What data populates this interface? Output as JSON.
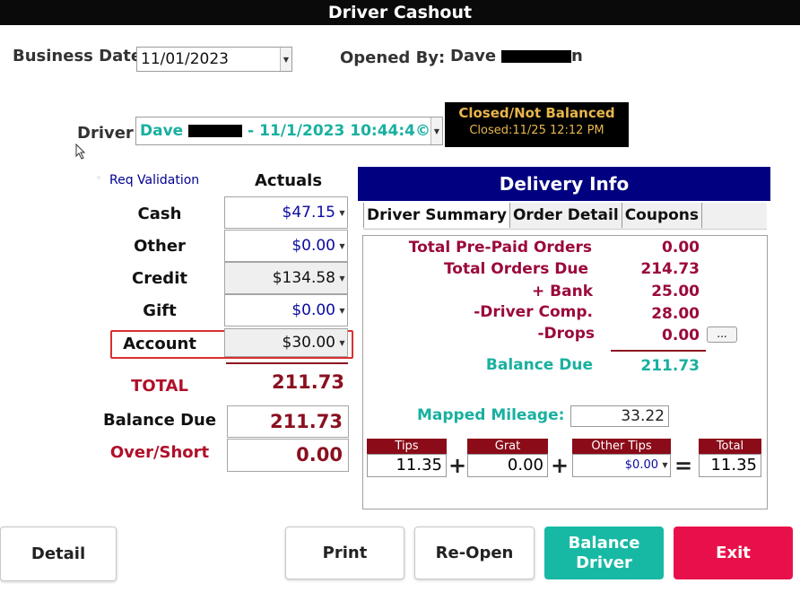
{
  "window": {
    "title": "Driver Cashout"
  },
  "header": {
    "business_date_label": "Business Date",
    "business_date_value": "11/01/2023",
    "opened_by_label": "Opened By:",
    "opened_by_name": "Dave",
    "opened_by_suffix": "n"
  },
  "driver": {
    "label": "Driver",
    "value_prefix": "Dave",
    "value_suffix": "- 11/1/2023 10:44:4©"
  },
  "status": {
    "main": "Closed/Not Balanced",
    "sub": "Closed:11/25 12:12 PM"
  },
  "actuals": {
    "req_validation_label": "Req Validation",
    "header": "Actuals",
    "rows": [
      {
        "label": "Cash",
        "value": "$47.15"
      },
      {
        "label": "Other",
        "value": "$0.00"
      },
      {
        "label": "Credit",
        "value": "$134.58"
      },
      {
        "label": "Gift",
        "value": "$0.00"
      },
      {
        "label": "Account",
        "value": "$30.00"
      }
    ],
    "total_label": "TOTAL",
    "total_value": "211.73",
    "balance_due_label": "Balance Due",
    "balance_due_value": "211.73",
    "over_short_label": "Over/Short",
    "over_short_value": "0.00"
  },
  "delivery": {
    "title": "Delivery Info",
    "tabs": [
      "Driver Summary",
      "Order Detail",
      "Coupons"
    ],
    "summary": [
      {
        "label": "Total Pre-Paid Orders",
        "value": "0.00"
      },
      {
        "label": "Total Orders Due",
        "value": "214.73"
      },
      {
        "label": "+ Bank",
        "value": "25.00"
      },
      {
        "label": "-Driver Comp.",
        "value": "28.00"
      },
      {
        "label": "-Drops",
        "value": "0.00"
      }
    ],
    "drops_button": "...",
    "balance_due_label": "Balance Due",
    "balance_due_value": "211.73",
    "mileage_label": "Mapped Mileage:",
    "mileage_value": "33.22",
    "tips": {
      "tips_label": "Tips",
      "tips_value": "11.35",
      "grat_label": "Grat",
      "grat_value": "0.00",
      "other_label": "Other Tips",
      "other_value": "$0.00",
      "total_label": "Total",
      "total_value": "11.35",
      "plus": "+",
      "equals": "="
    }
  },
  "footer": {
    "detail": "Detail",
    "print": "Print",
    "reopen": "Re-Open",
    "balance_line1": "Balance",
    "balance_line2": "Driver",
    "exit": "Exit"
  },
  "colors": {
    "navy": "#000080",
    "maroon": "#8b0b18",
    "teal": "#19b0a0",
    "exit_red": "#e8104a",
    "balance_teal": "#17b9a4",
    "status_gold": "#e8b64d"
  }
}
